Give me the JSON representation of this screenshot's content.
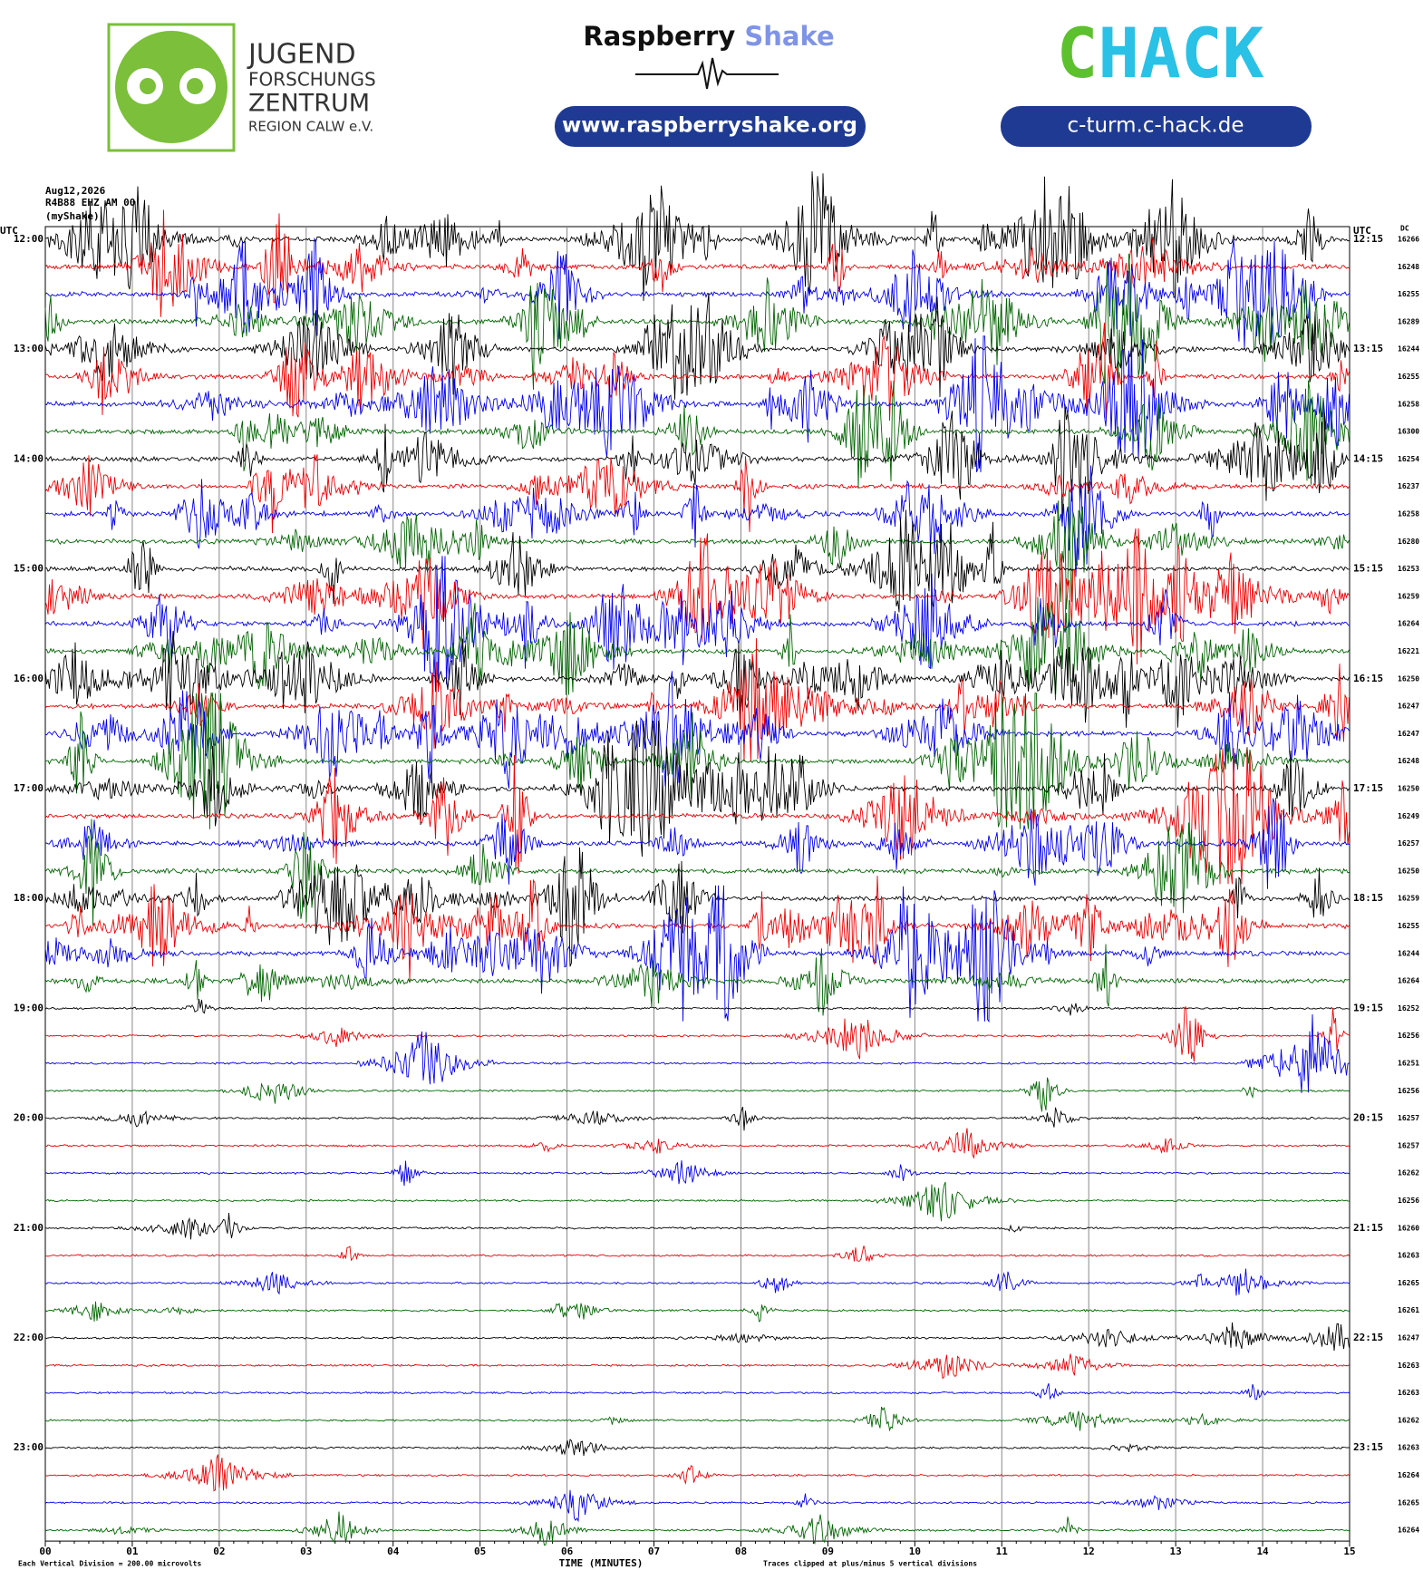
{
  "header": {
    "jfz": [
      "JUGEND",
      "FORSCHUNGS",
      "ZENTRUM",
      "REGION CALW e.V."
    ],
    "rs_brand": "Raspberry",
    "rs_brand2": "Shake",
    "rs_url": "www.raspberryshake.org",
    "chack_c": "C",
    "chack_rest": "HACK",
    "chack_url": "c-turm.c-hack.de"
  },
  "plot": {
    "date": "Aug12,2026",
    "station": "R4B88 EHZ AM 00",
    "owner": "(myShake)",
    "utc_left": "UTC",
    "utc_right": "UTC",
    "dc_header": "DC",
    "left_labels": [
      "12:00",
      "13:00",
      "14:00",
      "15:00",
      "16:00",
      "17:00",
      "18:00",
      "19:00",
      "20:00",
      "21:00",
      "22:00",
      "23:00"
    ],
    "right_labels": [
      "12:15",
      "13:15",
      "14:15",
      "15:15",
      "16:15",
      "17:15",
      "18:15",
      "19:15",
      "20:15",
      "21:15",
      "22:15",
      "23:15"
    ],
    "dc": [
      16266,
      16248,
      16255,
      16289,
      16244,
      16255,
      16258,
      16300,
      16254,
      16237,
      16258,
      16280,
      16253,
      16259,
      16264,
      16221,
      16250,
      16247,
      16247,
      16248,
      16250,
      16249,
      16257,
      16250,
      16259,
      16255,
      16244,
      16264,
      16252,
      16256,
      16251,
      16256,
      16257,
      16257,
      16262,
      16256,
      16260,
      16263,
      16265,
      16261,
      16247,
      16263,
      16263,
      16262,
      16263,
      16264,
      16265,
      16264
    ],
    "x_ticks": [
      "00",
      "01",
      "02",
      "03",
      "04",
      "05",
      "06",
      "07",
      "08",
      "09",
      "10",
      "11",
      "12",
      "13",
      "14",
      "15"
    ],
    "x_label": "TIME (MINUTES)",
    "scale_note": "Each Vertical Division =  200.00 microvolts",
    "clip_note": "Traces clipped at plus/minus 5 vertical divisions"
  }
}
